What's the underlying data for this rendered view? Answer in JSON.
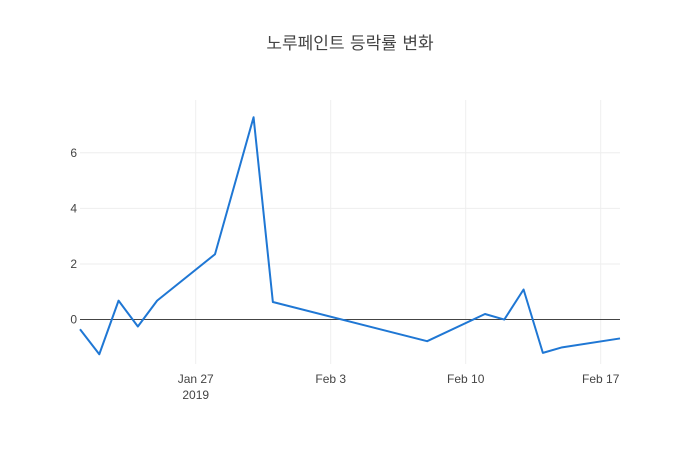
{
  "chart_data": {
    "type": "line",
    "title": "노루페인트 등락률 변화",
    "xlabel": "",
    "ylabel": "",
    "xlim": [
      "2019-01-21",
      "2019-02-18"
    ],
    "ylim": [
      -1.6,
      7.9
    ],
    "grid": true,
    "color": "#1f77d4",
    "x_ticks": [
      {
        "date": "2019-01-27",
        "label": "Jan 27",
        "sublabel": "2019"
      },
      {
        "date": "2019-02-03",
        "label": "Feb 3",
        "sublabel": ""
      },
      {
        "date": "2019-02-10",
        "label": "Feb 10",
        "sublabel": ""
      },
      {
        "date": "2019-02-17",
        "label": "Feb 17",
        "sublabel": ""
      }
    ],
    "y_ticks": [
      0,
      2,
      4,
      6
    ],
    "x": [
      "2019-01-21",
      "2019-01-22",
      "2019-01-23",
      "2019-01-24",
      "2019-01-25",
      "2019-01-28",
      "2019-01-30",
      "2019-01-31",
      "2019-02-08",
      "2019-02-11",
      "2019-02-12",
      "2019-02-13",
      "2019-02-14",
      "2019-02-15",
      "2019-02-18"
    ],
    "series": [
      {
        "values": [
          -0.35,
          -1.25,
          0.68,
          -0.25,
          0.68,
          2.35,
          7.28,
          0.63,
          -0.78,
          0.2,
          0.0,
          1.08,
          -1.2,
          -1.0,
          -0.68
        ]
      }
    ]
  }
}
